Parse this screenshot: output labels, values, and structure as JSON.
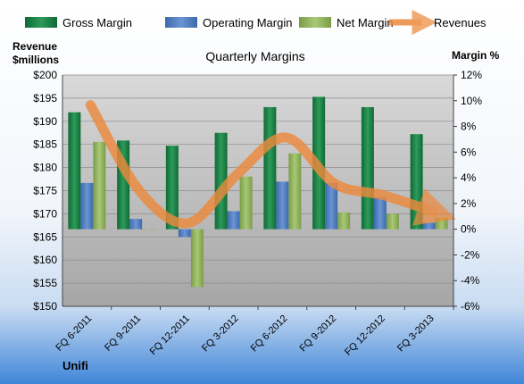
{
  "chart_data": {
    "type": "bar",
    "title": "Quarterly Margins",
    "brand": "Unifi",
    "left_axis_label": [
      "Revenue",
      "$millions"
    ],
    "right_axis_label": "Margin %",
    "categories": [
      "FQ 6-2011",
      "FQ 9-2011",
      "FQ 12-2011",
      "FQ 3-2012",
      "FQ 6-2012",
      "FQ 9-2012",
      "FQ 12-2012",
      "FQ 3-2013"
    ],
    "left_axis": {
      "min": 150,
      "max": 200,
      "step": 5,
      "ticks": [
        "$150",
        "$155",
        "$160",
        "$165",
        "$170",
        "$175",
        "$180",
        "$185",
        "$190",
        "$195",
        "$200"
      ]
    },
    "right_axis": {
      "min": -6,
      "max": 12,
      "step": 2,
      "ticks": [
        "-6%",
        "-4%",
        "-2%",
        "0%",
        "2%",
        "4%",
        "6%",
        "8%",
        "10%",
        "12%"
      ]
    },
    "series": [
      {
        "name": "Gross Margin",
        "axis": "right",
        "color": "#1f7a45",
        "values": [
          9.1,
          6.9,
          6.5,
          7.5,
          9.5,
          10.3,
          9.5,
          7.4
        ]
      },
      {
        "name": "Operating Margin",
        "axis": "right",
        "color": "#4f7ec3",
        "values": [
          3.6,
          0.8,
          -0.6,
          1.4,
          3.7,
          3.6,
          2.5,
          0.5
        ]
      },
      {
        "name": "Net Margin",
        "axis": "right",
        "color": "#8fb35a",
        "values": [
          6.8,
          0,
          -4.5,
          4.1,
          5.9,
          1.3,
          1.2,
          0.9
        ]
      },
      {
        "name": "Revenues",
        "axis": "left",
        "color": "#ec8a3d",
        "line": true,
        "values": [
          193.5,
          175.0,
          168.0,
          178.5,
          186.5,
          176.5,
          174.0,
          170.5
        ]
      }
    ],
    "grid": true,
    "legend": "top"
  }
}
